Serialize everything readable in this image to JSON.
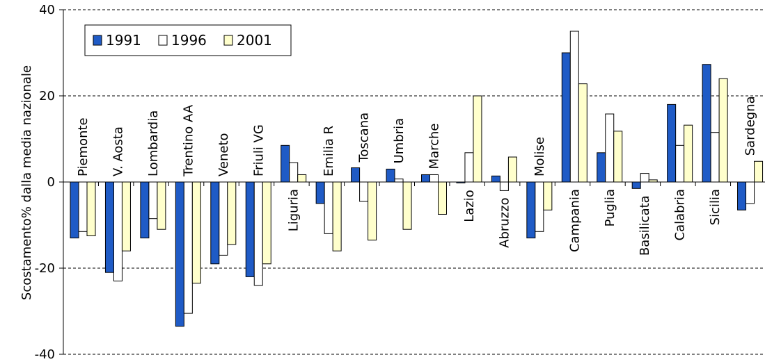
{
  "chart_data": {
    "type": "bar",
    "title": "",
    "xlabel": "",
    "ylabel": "Scostamento% dalla media nazionale",
    "ylim": [
      -40,
      40
    ],
    "yticks": [
      -40,
      -20,
      0,
      20,
      40
    ],
    "ytick_labels": [
      "-40",
      "-20",
      "0",
      "20",
      "40"
    ],
    "grid": true,
    "legend": "top-left",
    "categories": [
      "Piemonte",
      "V. Aosta",
      "Lombardia",
      "Trentino AA",
      "Veneto",
      "Friuli VG",
      "Liguria",
      "Emilia R",
      "Toscana",
      "Umbria",
      "Marche",
      "Lazio",
      "Abruzzo",
      "Molise",
      "Campania",
      "Puglia",
      "Basilicata",
      "Calabria",
      "Sicilia",
      "Sardegna"
    ],
    "series": [
      {
        "name": "1991",
        "color": "#1f5bc6",
        "values": [
          -13,
          -21,
          -13,
          -33.5,
          -19,
          -22,
          8.5,
          -5,
          3.3,
          3,
          1.7,
          -0.2,
          1.4,
          -13,
          30,
          6.8,
          -1.5,
          18,
          27.3,
          -6.5
        ]
      },
      {
        "name": "1996",
        "color": "#ffffff",
        "values": [
          -11.5,
          -23,
          -8.5,
          -30.5,
          -17,
          -24,
          4.5,
          -12,
          -4.5,
          0.7,
          1.7,
          6.8,
          -2,
          -11.5,
          35,
          15.8,
          2,
          8.5,
          11.5,
          -5
        ]
      },
      {
        "name": "2001",
        "color": "#ffffcc",
        "values": [
          -12.5,
          -16,
          -11,
          -23.5,
          -14.5,
          -19,
          1.7,
          -16,
          -13.5,
          -11,
          -7.5,
          20,
          5.8,
          -6.5,
          22.8,
          11.8,
          0.5,
          13.2,
          24,
          4.8
        ]
      }
    ]
  }
}
